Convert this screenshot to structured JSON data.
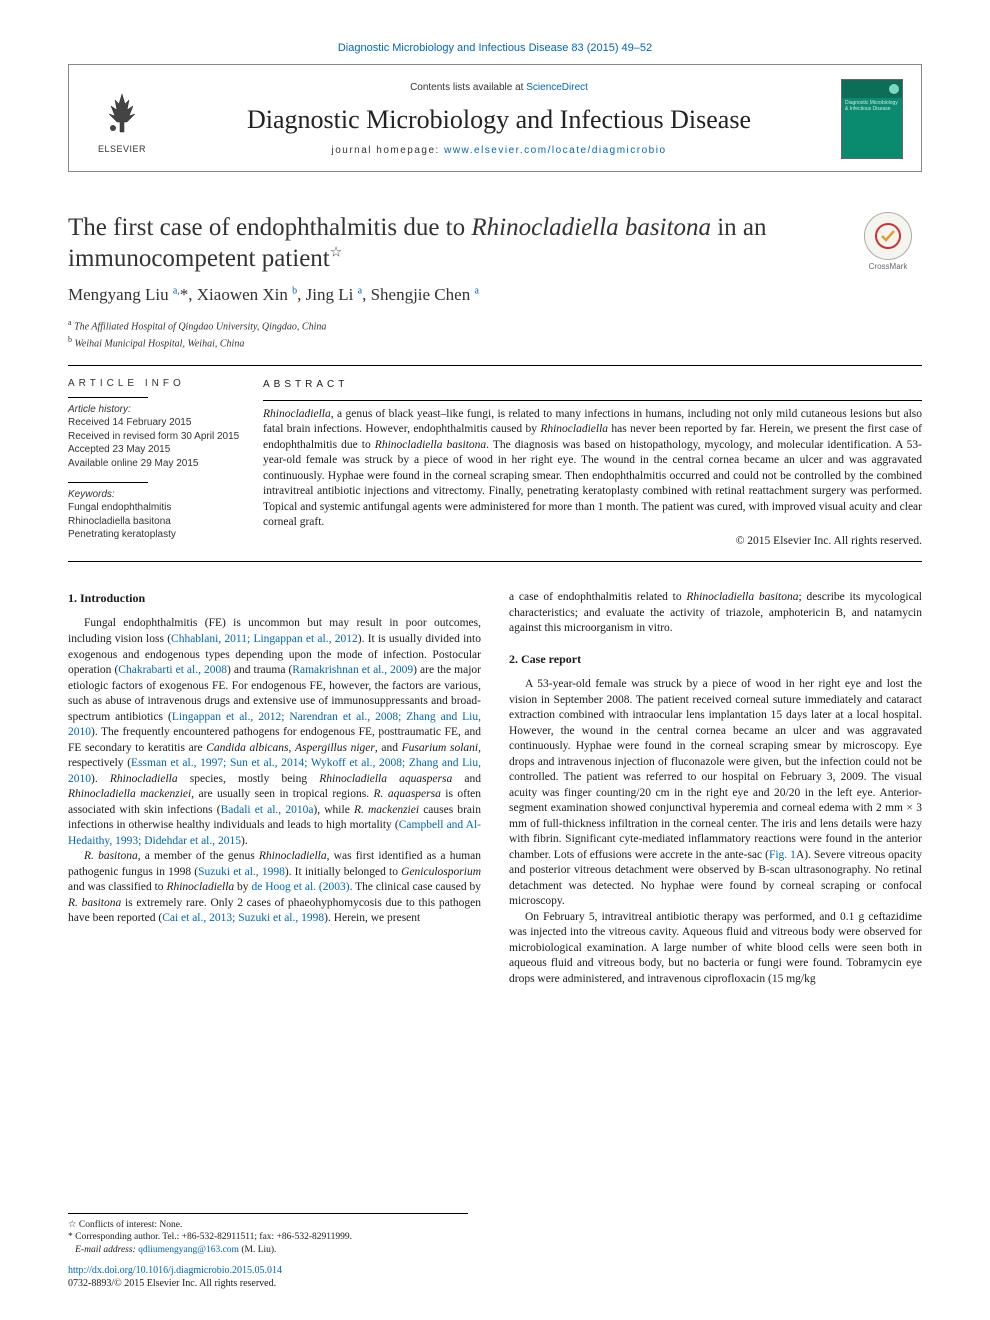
{
  "top_link": "Diagnostic Microbiology and Infectious Disease 83 (2015) 49–52",
  "header": {
    "contents_prefix": "Contents lists available at ",
    "contents_link": "ScienceDirect",
    "journal_name": "Diagnostic Microbiology and Infectious Disease",
    "homepage_prefix": "journal homepage: ",
    "homepage_link": "www.elsevier.com/locate/diagmicrobio",
    "elsevier_label": "ELSEVIER",
    "cover_text": "Diagnostic Microbiology & Infectious Disease"
  },
  "crossmark_label": "CrossMark",
  "title_html": "The first case of endophthalmitis due to <em>Rhinocladiella basitona</em> in an immunocompetent patient",
  "title_star": "☆",
  "authors_html": "Mengyang Liu <sup>a,</sup>*, Xiaowen Xin <sup>b</sup>, Jing Li <sup>a</sup>, Shengjie Chen <sup>a</sup>",
  "affiliations": [
    "a  The Affiliated Hospital of Qingdao University, Qingdao, China",
    "b  Weihai Municipal Hospital, Weihai, China"
  ],
  "info": {
    "heading": "ARTICLE INFO",
    "history_label": "Article history:",
    "history": [
      "Received 14 February 2015",
      "Received in revised form 30 April 2015",
      "Accepted 23 May 2015",
      "Available online 29 May 2015"
    ],
    "keywords_label": "Keywords:",
    "keywords": [
      "Fungal endophthalmitis",
      "Rhinocladiella basitona",
      "Penetrating keratoplasty"
    ]
  },
  "abstract": {
    "heading": "ABSTRACT",
    "body_html": "<em>Rhinocladiella</em>, a genus of black yeast–like fungi, is related to many infections in humans, including not only mild cutaneous lesions but also fatal brain infections. However, endophthalmitis caused by <em>Rhinocladiella</em> has never been reported by far. Herein, we present the first case of endophthalmitis due to <em>Rhinocladiella basitona</em>. The diagnosis was based on histopathology, mycology, and molecular identification. A 53-year-old female was struck by a piece of wood in her right eye. The wound in the central cornea became an ulcer and was aggravated continuously. Hyphae were found in the corneal scraping smear. Then endophthalmitis occurred and could not be controlled by the combined intravitreal antibiotic injections and vitrectomy. Finally, penetrating keratoplasty combined with retinal reattachment surgery was performed. Topical and systemic antifungal agents were administered for more than 1 month. The patient was cured, with improved visual acuity and clear corneal graft.",
    "copyright": "© 2015 Elsevier Inc. All rights reserved."
  },
  "sections": {
    "intro_heading": "1. Introduction",
    "intro_p1_html": "Fungal endophthalmitis (FE) is uncommon but may result in poor outcomes, including vision loss (<a>Chhablani, 2011; Lingappan et al., 2012</a>). It is usually divided into exogenous and endogenous types depending upon the mode of infection. Postocular operation (<a>Chakrabarti et al., 2008</a>) and trauma (<a>Ramakrishnan et al., 2009</a>) are the major etiologic factors of exogenous FE. For endogenous FE, however, the factors are various, such as abuse of intravenous drugs and extensive use of immunosuppressants and broad-spectrum antibiotics (<a>Lingappan et al., 2012; Narendran et al., 2008; Zhang and Liu, 2010</a>). The frequently encountered pathogens for endogenous FE, posttraumatic FE, and FE secondary to keratitis are <em>Candida albicans</em>, <em>Aspergillus niger</em>, and <em>Fusarium solani</em>, respectively (<a>Essman et al., 1997; Sun et al., 2014; Wykoff et al., 2008; Zhang and Liu, 2010</a>). <em>Rhinocladiella</em> species, mostly being <em>Rhinocladiella aquaspersa</em> and <em>Rhinocladiella mackenziei</em>, are usually seen in tropical regions. <em>R. aquaspersa</em> is often associated with skin infections (<a>Badali et al., 2010a</a>), while <em>R. mackenziei</em> causes brain infections in otherwise healthy individuals and leads to high mortality (<a>Campbell and Al-Hedaithy, 1993; Didehdar et al., 2015</a>).",
    "intro_p2_html": "<em>R. basitona</em>, a member of the genus <em>Rhinocladiella</em>, was first identified as a human pathogenic fungus in 1998 (<a>Suzuki et al., 1998</a>). It initially belonged to <em>Geniculosporium</em> and was classified to <em>Rhinocladiella</em> by <a>de Hoog et al. (2003)</a>. The clinical case caused by <em>R. basitona</em> is extremely rare. Only 2 cases of phaeohyphomycosis due to this pathogen have been reported (<a>Cai et al., 2013; Suzuki et al., 1998</a>). Herein, we present",
    "col2_top_html": "a case of endophthalmitis related to <em>Rhinocladiella basitona</em>; describe its mycological characteristics; and evaluate the activity of triazole, amphotericin B, and natamycin against this microorganism in vitro.",
    "case_heading": "2. Case report",
    "case_p1_html": "A 53-year-old female was struck by a piece of wood in her right eye and lost the vision in September 2008. The patient received corneal suture immediately and cataract extraction combined with intraocular lens implantation 15 days later at a local hospital. However, the wound in the central cornea became an ulcer and was aggravated continuously. Hyphae were found in the corneal scraping smear by microscopy. Eye drops and intravenous injection of fluconazole were given, but the infection could not be controlled. The patient was referred to our hospital on February 3, 2009. The visual acuity was finger counting/20 cm in the right eye and 20/20 in the left eye. Anterior-segment examination showed conjunctival hyperemia and corneal edema with 2 mm × 3 mm of full-thickness infiltration in the corneal center. The iris and lens details were hazy with fibrin. Significant cyte-mediated inflammatory reactions were found in the anterior chamber. Lots of effusions were accrete in the ante-sac (<a>Fig. 1</a>A). Severe vitreous opacity and posterior vitreous detachment were observed by B-scan ultrasonography. No retinal detachment was detected. No hyphae were found by corneal scraping or confocal microscopy.",
    "case_p2_html": "On February 5, intravitreal antibiotic therapy was performed, and 0.1 g ceftazidime was injected into the vitreous cavity. Aqueous fluid and vitreous body were observed for microbiological examination. A large number of white blood cells were seen both in aqueous fluid and vitreous body, but no bacteria or fungi were found. Tobramycin eye drops were administered, and intravenous ciprofloxacin (15 mg/kg"
  },
  "footnotes": {
    "conflict": "☆  Conflicts of interest: None.",
    "corresponding": "*  Corresponding author. Tel.: +86-532-82911511; fax: +86-532-82911999.",
    "email_label": "E-mail address: ",
    "email": "qdliumengyang@163.com",
    "email_suffix": " (M. Liu)."
  },
  "bottom": {
    "doi": "http://dx.doi.org/10.1016/j.diagmicrobio.2015.05.014",
    "issn": "0732-8893/© 2015 Elsevier Inc. All rights reserved."
  },
  "colors": {
    "link": "#0066b3",
    "text": "#1a1a1a",
    "cover_bg": "#0a8a6e",
    "cover_top": "#0d6e58"
  }
}
